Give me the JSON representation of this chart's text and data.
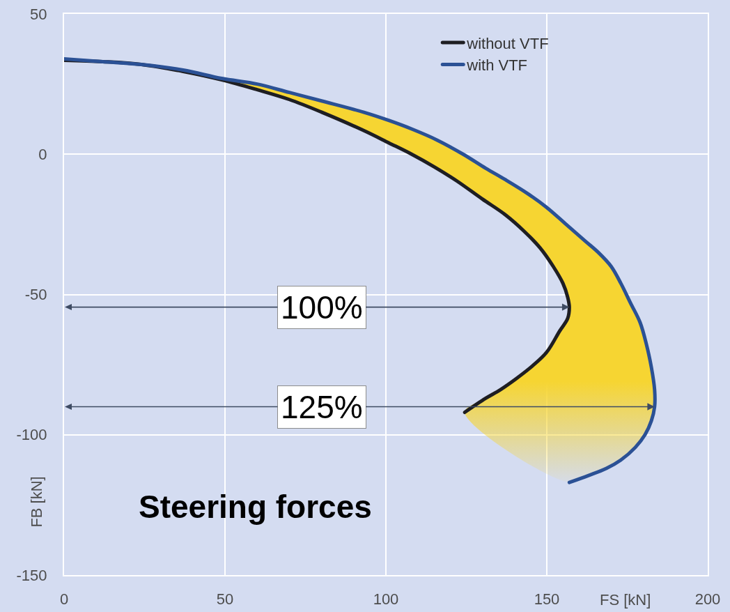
{
  "chart_data": {
    "type": "line",
    "title": "Steering forces",
    "xlabel": "FS [kN]",
    "ylabel": "FB [kN]",
    "xlim": [
      0,
      200
    ],
    "xticks": [
      0,
      50,
      100,
      150,
      200
    ],
    "ylim": [
      -150,
      50
    ],
    "yticks": [
      -150,
      -100,
      -50,
      0,
      50
    ],
    "grid": true,
    "legend": "top right",
    "series": [
      {
        "type": "area",
        "color": "#f6d532",
        "x": [
          49,
          60,
          70,
          80,
          93,
          101,
          108,
          116,
          124,
          131,
          137,
          144,
          150,
          156,
          162,
          166,
          170,
          173,
          176,
          179,
          181,
          182.5,
          183.5,
          183.5,
          182.5,
          180.5,
          177.5,
          173,
          168.5,
          163,
          157,
          124.5,
          131,
          135.5,
          140.5,
          145.5,
          150,
          154,
          156.5,
          157,
          156.5,
          155,
          152,
          148,
          143,
          137,
          130,
          122,
          115,
          108,
          101,
          93,
          80,
          70,
          60,
          49
        ],
        "values": [
          27,
          25,
          22,
          19,
          15,
          12,
          9,
          5,
          0,
          -5,
          -9,
          -14,
          -19,
          -25,
          -31,
          -35,
          -40,
          -46,
          -53,
          -60,
          -68,
          -76,
          -84,
          -90,
          -95,
          -100,
          -104.5,
          -109,
          -112,
          -114.5,
          -117,
          -92,
          -87,
          -84,
          -80,
          -75.5,
          -70.5,
          -63,
          -58.5,
          -54.5,
          -51,
          -46,
          -40,
          -33.5,
          -27.5,
          -21.5,
          -16,
          -9.5,
          -4.5,
          0,
          4,
          8.5,
          15,
          19.5,
          23,
          26.5
        ]
      },
      {
        "name": "without VTF",
        "color": "#1e1e22",
        "x": [
          0,
          12,
          24,
          37,
          49,
          60,
          70,
          80,
          93,
          101,
          108,
          115,
          122,
          130,
          137,
          143,
          148,
          152,
          155,
          156.5,
          157,
          156.5,
          154,
          150,
          145.5,
          140.5,
          135.5,
          131,
          124.5
        ],
        "values": [
          33.5,
          33,
          32,
          29.5,
          26.5,
          23,
          19.5,
          15,
          8.5,
          4,
          0,
          -4.5,
          -9.5,
          -16,
          -21.5,
          -27.5,
          -33.5,
          -40,
          -46,
          -51,
          -54.5,
          -58.5,
          -63,
          -70.5,
          -75.5,
          -80,
          -84,
          -87,
          -92
        ]
      },
      {
        "name": "with VTF",
        "color": "#2b5195",
        "x": [
          0,
          12,
          24,
          37,
          49,
          60,
          70,
          80,
          93,
          101,
          108,
          116,
          124,
          131,
          137,
          144,
          150,
          156,
          162,
          166,
          170,
          173,
          176,
          179,
          181,
          182.5,
          183.5,
          183.5,
          182.5,
          180.5,
          177.5,
          173,
          168.5,
          163,
          157
        ],
        "values": [
          34,
          33,
          32,
          30,
          27,
          25,
          22,
          19,
          15,
          12,
          9,
          5,
          0,
          -5,
          -9,
          -14,
          -19,
          -25,
          -31,
          -35,
          -40,
          -46,
          -53,
          -60,
          -68,
          -76,
          -84,
          -90,
          -95,
          -100,
          -104.5,
          -109,
          -112,
          -114.5,
          -117
        ]
      }
    ],
    "annotations": [
      {
        "text": "100%",
        "x": 157,
        "y": -54.5
      },
      {
        "text": "125%",
        "x": 183.5,
        "y": -90
      }
    ]
  }
}
